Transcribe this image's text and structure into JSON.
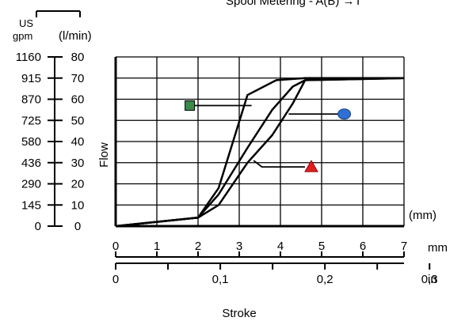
{
  "chart_data": {
    "type": "line",
    "header_text": "Spool Metering - A(B) →T",
    "ylabel": "Flow",
    "xlabel": "Stroke",
    "y_left_unit": "US\ngpm",
    "y_right_unit": "(l/min)",
    "x_unit_inside": "(mm)",
    "x_unit_mm": "mm",
    "x_unit_in": "in",
    "y_lpm_ticks": [
      0,
      10,
      20,
      30,
      40,
      50,
      60,
      70,
      80
    ],
    "y_gpm_labels": [
      "0",
      "145",
      "290",
      "436",
      "580",
      "725",
      "870",
      "915",
      "1160"
    ],
    "x_mm_ticks": [
      0,
      1,
      2,
      3,
      4,
      5,
      6,
      7
    ],
    "x_in_ticks": [
      "0",
      "0,1",
      "0,2",
      "0,3"
    ],
    "xlim": [
      0,
      7
    ],
    "ylim": [
      0,
      80
    ],
    "grid": true,
    "series": [
      {
        "marker": "square",
        "marker_color": "#3a8a4a",
        "x": [
          0,
          2,
          2.5,
          3.2,
          3.9,
          4.6,
          7
        ],
        "y": [
          0,
          4,
          18,
          62,
          69,
          70,
          70
        ]
      },
      {
        "marker": "circle",
        "marker_color": "#2f6fd6",
        "x": [
          0,
          2,
          2.5,
          3.2,
          3.8,
          4.3,
          4.6,
          7
        ],
        "y": [
          0,
          4,
          15,
          37,
          55,
          66,
          69,
          70
        ]
      },
      {
        "marker": "triangle",
        "marker_color": "#e02020",
        "x": [
          0,
          2,
          2.5,
          3.2,
          3.8,
          4.3,
          4.6,
          7
        ],
        "y": [
          0,
          4,
          10,
          30,
          43,
          58,
          69,
          70
        ]
      }
    ]
  }
}
